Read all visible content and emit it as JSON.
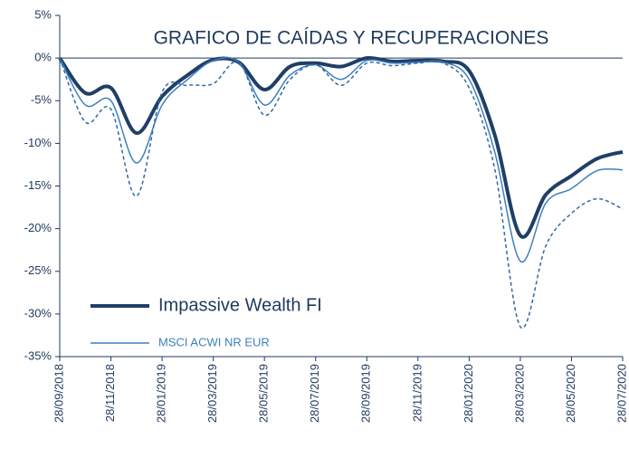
{
  "chart_data": {
    "type": "line",
    "title": "GRAFICO DE CAÍDAS Y RECUPERACIONES",
    "x": [
      "28/09/2018",
      null,
      "28/11/2018",
      null,
      "28/01/2019",
      null,
      "28/03/2019",
      null,
      "28/05/2019",
      null,
      "28/07/2019",
      null,
      "28/09/2019",
      null,
      "28/11/2019",
      null,
      "28/01/2020",
      null,
      "28/03/2020",
      null,
      "28/05/2020",
      null,
      "28/07/2020"
    ],
    "series": [
      {
        "name": "Impassive Wealth FI",
        "color": "#1f3f66",
        "values": [
          0,
          -4.1,
          -3.5,
          -8.8,
          -4.5,
          -2,
          -0.2,
          -0.5,
          -3.7,
          -1,
          -0.6,
          -1.0,
          0,
          -0.4,
          -0.3,
          -0.4,
          -1.5,
          -9,
          -20.8,
          -16,
          -13.8,
          -11.8,
          -11
        ]
      },
      {
        "name": "MSCI ACWI NR EUR",
        "color": "#3f7fbf",
        "values": [
          0,
          -5.5,
          -5,
          -12.3,
          -5.5,
          -2.5,
          -0.3,
          -0.5,
          -5.5,
          -2,
          -0.8,
          -2.5,
          -0.3,
          -0.6,
          -0.5,
          -0.5,
          -2.5,
          -11,
          -23.8,
          -17,
          -15.3,
          -13.2,
          -13.1
        ]
      },
      {
        "color": "#2e6aa8",
        "dashed": true,
        "values": [
          0,
          -7.5,
          -6,
          -16.2,
          -4,
          -3.2,
          -3,
          -0.5,
          -6.7,
          -2.5,
          -0.8,
          -3.2,
          -0.6,
          -0.9,
          -0.6,
          -0.6,
          -3.5,
          -13,
          -31.5,
          -22,
          -18.2,
          -16.5,
          -17.7
        ]
      }
    ],
    "ylim": [
      -35,
      5
    ],
    "yticks": [
      {
        "value": 5,
        "label": "5%"
      },
      {
        "value": 0,
        "label": "0%"
      },
      {
        "value": -5,
        "label": "-5%"
      },
      {
        "value": -10,
        "label": "-10%"
      },
      {
        "value": -15,
        "label": "-15%"
      },
      {
        "value": -20,
        "label": "-20%"
      },
      {
        "value": -25,
        "label": "-25%"
      },
      {
        "value": -30,
        "label": "-30%"
      },
      {
        "value": -35,
        "label": "-35%"
      }
    ]
  }
}
